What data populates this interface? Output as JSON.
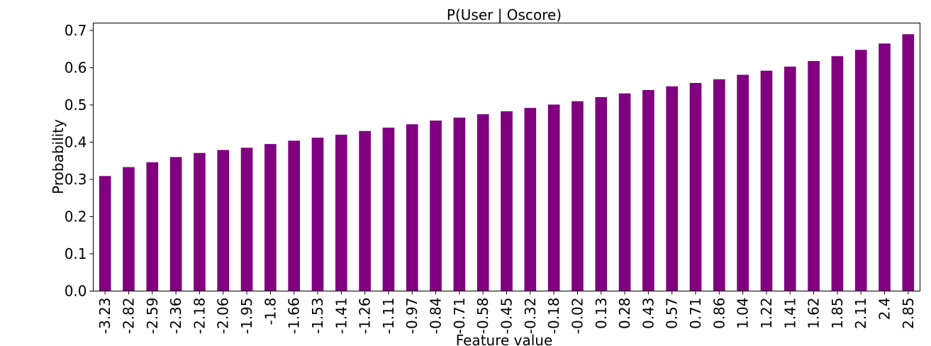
{
  "chart_data": {
    "type": "bar",
    "title": "P(User | Oscore)",
    "xlabel": "Feature value",
    "ylabel": "Probability",
    "ylim": [
      0,
      0.72
    ],
    "yticks": [
      "0.0",
      "0.1",
      "0.2",
      "0.3",
      "0.4",
      "0.5",
      "0.6",
      "0.7"
    ],
    "grid": false,
    "bar_color": "#800080",
    "categories": [
      "-3.23",
      "-2.82",
      "-2.59",
      "-2.36",
      "-2.18",
      "-2.06",
      "-1.95",
      "-1.8",
      "-1.66",
      "-1.53",
      "-1.41",
      "-1.26",
      "-1.11",
      "-0.97",
      "-0.84",
      "-0.71",
      "-0.58",
      "-0.45",
      "-0.32",
      "-0.18",
      "-0.02",
      "0.13",
      "0.28",
      "0.43",
      "0.57",
      "0.71",
      "0.86",
      "1.04",
      "1.22",
      "1.41",
      "1.62",
      "1.85",
      "2.11",
      "2.4",
      "2.85"
    ],
    "values": [
      0.309,
      0.333,
      0.346,
      0.36,
      0.371,
      0.379,
      0.385,
      0.395,
      0.404,
      0.412,
      0.42,
      0.43,
      0.439,
      0.448,
      0.458,
      0.466,
      0.475,
      0.483,
      0.492,
      0.501,
      0.51,
      0.521,
      0.531,
      0.54,
      0.55,
      0.559,
      0.569,
      0.581,
      0.592,
      0.603,
      0.618,
      0.631,
      0.648,
      0.665,
      0.69
    ]
  }
}
